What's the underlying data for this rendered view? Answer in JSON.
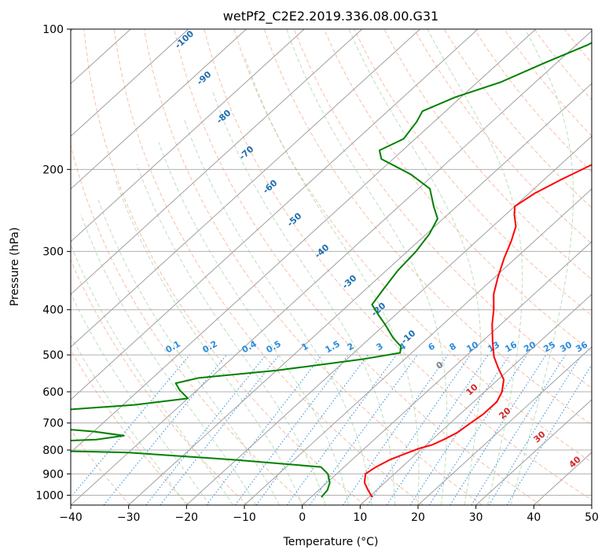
{
  "chart_data": {
    "type": "line",
    "title": "wetPf2_C2E2.2019.336.08.00.G31",
    "xlabel": "Temperature (°C)",
    "ylabel": "Pressure (hPa)",
    "xlim": [
      -40,
      50
    ],
    "ylim": [
      1050,
      100
    ],
    "yscale": "log",
    "xticks": [
      -40,
      -30,
      -20,
      -10,
      0,
      10,
      20,
      30,
      40,
      50
    ],
    "yticks": [
      100,
      200,
      300,
      400,
      500,
      600,
      700,
      800,
      900,
      1000
    ],
    "grid": true,
    "skew": true,
    "colors": {
      "temperature": "#ff0000",
      "dewpoint": "#008000",
      "isotherm": "#a0a0a0",
      "dry_adiabat": "#f4a582",
      "moist_adiabat": "#a6d4a6",
      "mixing_ratio": "#2b8cdc",
      "isotherm_label": "#1f6fb0",
      "dry_adiabat_label": "#d62728",
      "zero_label": "#808080"
    },
    "series": [
      {
        "key": "temperature",
        "points": [
          [
            10.6,
            1010
          ],
          [
            8.5,
            975
          ],
          [
            6.5,
            940
          ],
          [
            5.0,
            900
          ],
          [
            5.5,
            870
          ],
          [
            6.5,
            840
          ],
          [
            8.0,
            815
          ],
          [
            9.5,
            793
          ],
          [
            11,
            780
          ],
          [
            12,
            760
          ],
          [
            13,
            735
          ],
          [
            13.5,
            700
          ],
          [
            14,
            670
          ],
          [
            14,
            630
          ],
          [
            13,
            600
          ],
          [
            11,
            565
          ],
          [
            8,
            535
          ],
          [
            5,
            505
          ],
          [
            2.0,
            470
          ],
          [
            -1.5,
            430
          ],
          [
            -4,
            400
          ],
          [
            -7,
            370
          ],
          [
            -9.5,
            340
          ],
          [
            -12,
            310
          ],
          [
            -14,
            285
          ],
          [
            -16,
            265
          ],
          [
            -18.5,
            250
          ],
          [
            -20,
            240
          ],
          [
            -19,
            225
          ],
          [
            -17,
            210
          ],
          [
            -14.5,
            195
          ],
          [
            -12.5,
            180
          ],
          [
            -11.5,
            165
          ],
          [
            -11.5,
            150
          ],
          [
            -12.5,
            135
          ],
          [
            -13.5,
            122
          ],
          [
            -14,
            112
          ],
          [
            -15,
            100
          ]
        ]
      },
      {
        "key": "dewpoint",
        "points": [
          [
            1.8,
            1010
          ],
          [
            1.5,
            975
          ],
          [
            0.5,
            940
          ],
          [
            -1.5,
            900
          ],
          [
            -4,
            870
          ],
          [
            -20,
            840
          ],
          [
            -40,
            810
          ],
          [
            -60,
            800
          ],
          [
            -70,
            790
          ],
          [
            -78,
            780
          ],
          [
            -60,
            770
          ],
          [
            -48,
            760
          ],
          [
            -44,
            745
          ],
          [
            -50,
            730
          ],
          [
            -60,
            715
          ],
          [
            -75,
            700
          ],
          [
            -90,
            690
          ],
          [
            -62,
            660
          ],
          [
            -48,
            640
          ],
          [
            -40,
            620
          ],
          [
            -43,
            595
          ],
          [
            -45,
            575
          ],
          [
            -42,
            560
          ],
          [
            -30,
            540
          ],
          [
            -17,
            510
          ],
          [
            -12,
            495
          ],
          [
            -13,
            480
          ],
          [
            -16,
            460
          ],
          [
            -20,
            430
          ],
          [
            -23,
            410
          ],
          [
            -26,
            390
          ],
          [
            -27,
            360
          ],
          [
            -28,
            330
          ],
          [
            -28.5,
            300
          ],
          [
            -29.5,
            275
          ],
          [
            -31,
            255
          ],
          [
            -34,
            240
          ],
          [
            -38,
            220
          ],
          [
            -44,
            205
          ],
          [
            -52,
            190
          ],
          [
            -54,
            182
          ],
          [
            -52,
            172
          ],
          [
            -53,
            158
          ],
          [
            -54,
            150
          ],
          [
            -51,
            140
          ],
          [
            -46,
            130
          ],
          [
            -42,
            118
          ],
          [
            -38,
            108
          ],
          [
            -36,
            100
          ]
        ]
      }
    ],
    "isotherm_labels": [
      "-100",
      "-90",
      "-80",
      "-70",
      "-60",
      "-50",
      "-40",
      "-30",
      "-20",
      "-10"
    ],
    "mixing_ratio_labels": [
      "0.1",
      "0.2",
      "0.4",
      "0.5",
      "1",
      "1.5",
      "2",
      "3",
      "4",
      "6",
      "8",
      "10",
      "13",
      "16",
      "20",
      "25",
      "30",
      "36"
    ],
    "dry_adiabat_labels": [
      "10",
      "20",
      "30",
      "40"
    ],
    "zero_label": "0"
  }
}
